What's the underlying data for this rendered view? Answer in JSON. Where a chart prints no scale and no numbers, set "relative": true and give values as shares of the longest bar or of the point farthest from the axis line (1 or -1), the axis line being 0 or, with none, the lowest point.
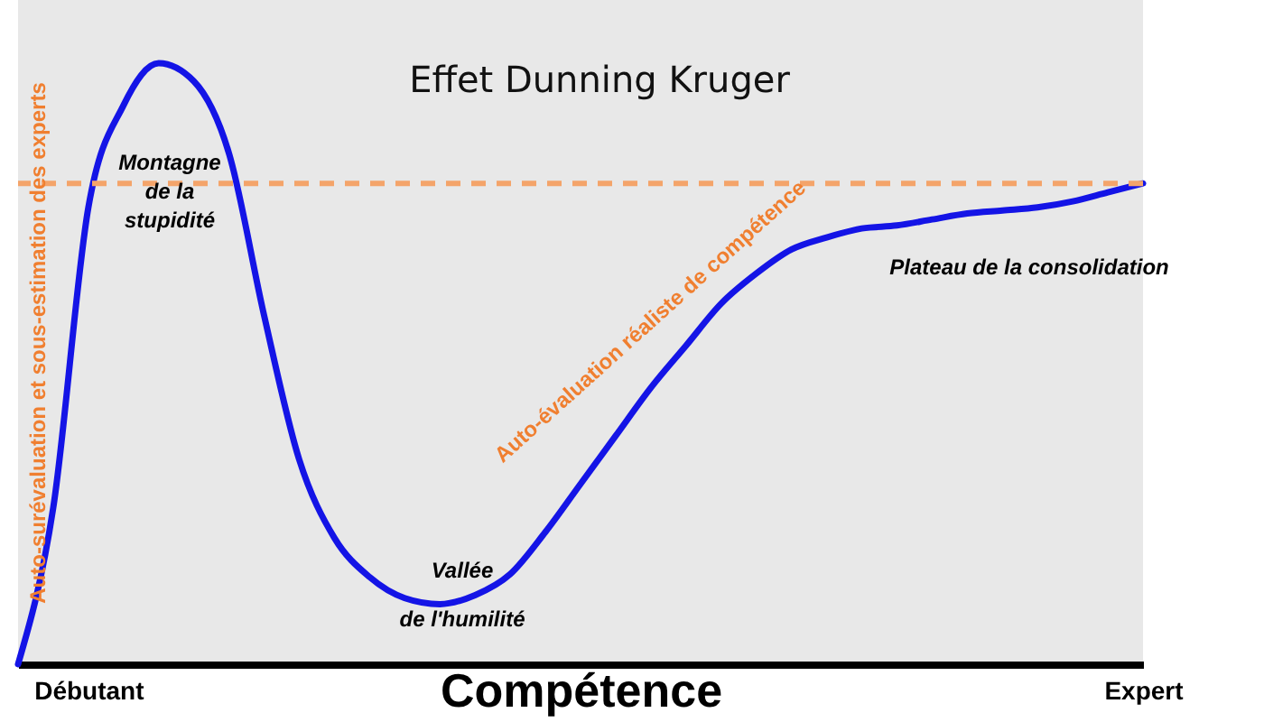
{
  "chart_data": {
    "type": "line",
    "title": "Effet Dunning Kruger",
    "xlabel": "Compétence",
    "categories": [
      null,
      null,
      "Débutant",
      null,
      null,
      null,
      null,
      null,
      null,
      null,
      null,
      null,
      null,
      null,
      null,
      null,
      null,
      null,
      null,
      null,
      null,
      null,
      null,
      null,
      null,
      null,
      null,
      null,
      null,
      null,
      null,
      null,
      "Expert"
    ],
    "series": [
      {
        "color": "#1414e6",
        "values": [
          0,
          0.26,
          0.76,
          0.93,
          1,
          0.97,
          0.85,
          0.58,
          0.34,
          0.21,
          0.145,
          0.11,
          0.1,
          0.115,
          0.15,
          0.22,
          0.3,
          0.38,
          0.46,
          0.53,
          0.6,
          0.65,
          0.69,
          0.71,
          0.725,
          0.73,
          0.74,
          0.75,
          0.755,
          0.76,
          0.77,
          0.785,
          0.8
        ]
      }
    ],
    "relative": true,
    "ref_lines": [
      {
        "axis": "y",
        "value": 0.8,
        "color": "#f4a46a",
        "line_style": "dashed"
      }
    ],
    "annotations": [
      "Montagne de la stupidité",
      "Vallée de l'humilité",
      "Plateau de la consolidation",
      "Auto-surévaluation et sous-estimation des experts",
      "Auto-évaluation réaliste de compétence"
    ],
    "legend": false,
    "grid": false,
    "marker": "none",
    "line_style": "solid"
  }
}
